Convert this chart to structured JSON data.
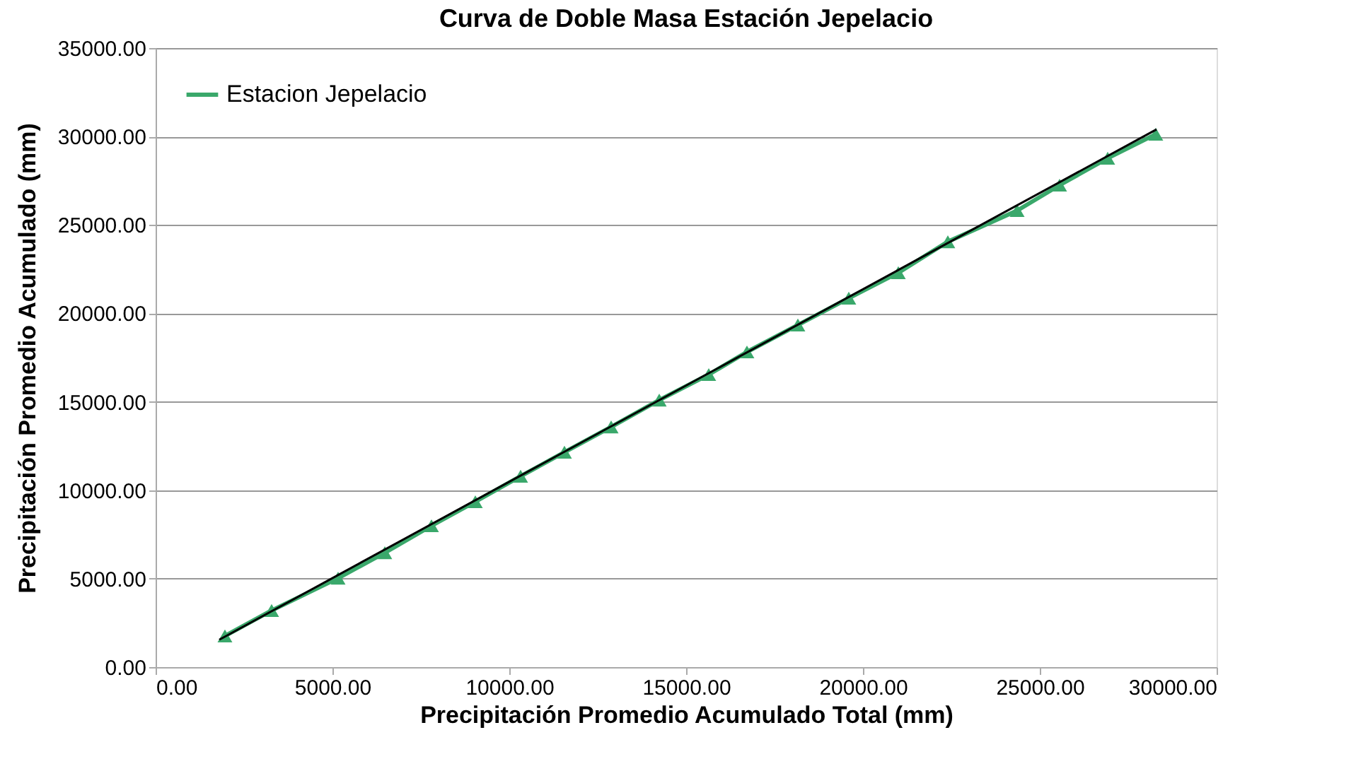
{
  "chart_data": {
    "type": "line",
    "title": "Curva de Doble Masa Estación Jepelacio",
    "xlabel": "Precipitación Promedio Acumulado Total (mm)",
    "ylabel": "Precipitación Promedio Acumulado (mm)",
    "xlim": [
      0,
      30000
    ],
    "xticks": [
      {
        "value": 0,
        "label": "0.00"
      },
      {
        "value": 5000,
        "label": "5000.00"
      },
      {
        "value": 10000,
        "label": "10000.00"
      },
      {
        "value": 15000,
        "label": "15000.00"
      },
      {
        "value": 20000,
        "label": "20000.00"
      },
      {
        "value": 25000,
        "label": "25000.00"
      },
      {
        "value": 30000,
        "label": "30000.00"
      }
    ],
    "ylim": [
      0,
      35000
    ],
    "yticks": [
      {
        "value": 0,
        "label": "0.00"
      },
      {
        "value": 5000,
        "label": "5000.00"
      },
      {
        "value": 10000,
        "label": "10000.00"
      },
      {
        "value": 15000,
        "label": "15000.00"
      },
      {
        "value": 20000,
        "label": "20000.00"
      },
      {
        "value": 25000,
        "label": "25000.00"
      },
      {
        "value": 30000,
        "label": "30000.00"
      },
      {
        "value": 35000,
        "label": "35000.00"
      }
    ],
    "grid": "y",
    "legend": "top left",
    "marker": "triangle",
    "line_style": "solid",
    "series": [
      {
        "name": "Estacion Jepelacio",
        "color": "#3aa86b",
        "x": [
          1960,
          3280,
          5160,
          6480,
          7800,
          9040,
          10320,
          11560,
          12880,
          14240,
          15640,
          16720,
          18160,
          19600,
          21000,
          22400,
          24360,
          25560,
          26920,
          28280
        ],
        "values": [
          1760,
          3200,
          5030,
          6470,
          7990,
          9350,
          10790,
          12150,
          13580,
          15100,
          16540,
          17820,
          19340,
          20860,
          22300,
          24050,
          25810,
          27250,
          28770,
          30130
        ]
      },
      {
        "type": "line",
        "color": "#000000",
        "marker": "none",
        "x": [
          1800,
          28300
        ],
        "values": [
          1550,
          30400
        ]
      }
    ]
  }
}
